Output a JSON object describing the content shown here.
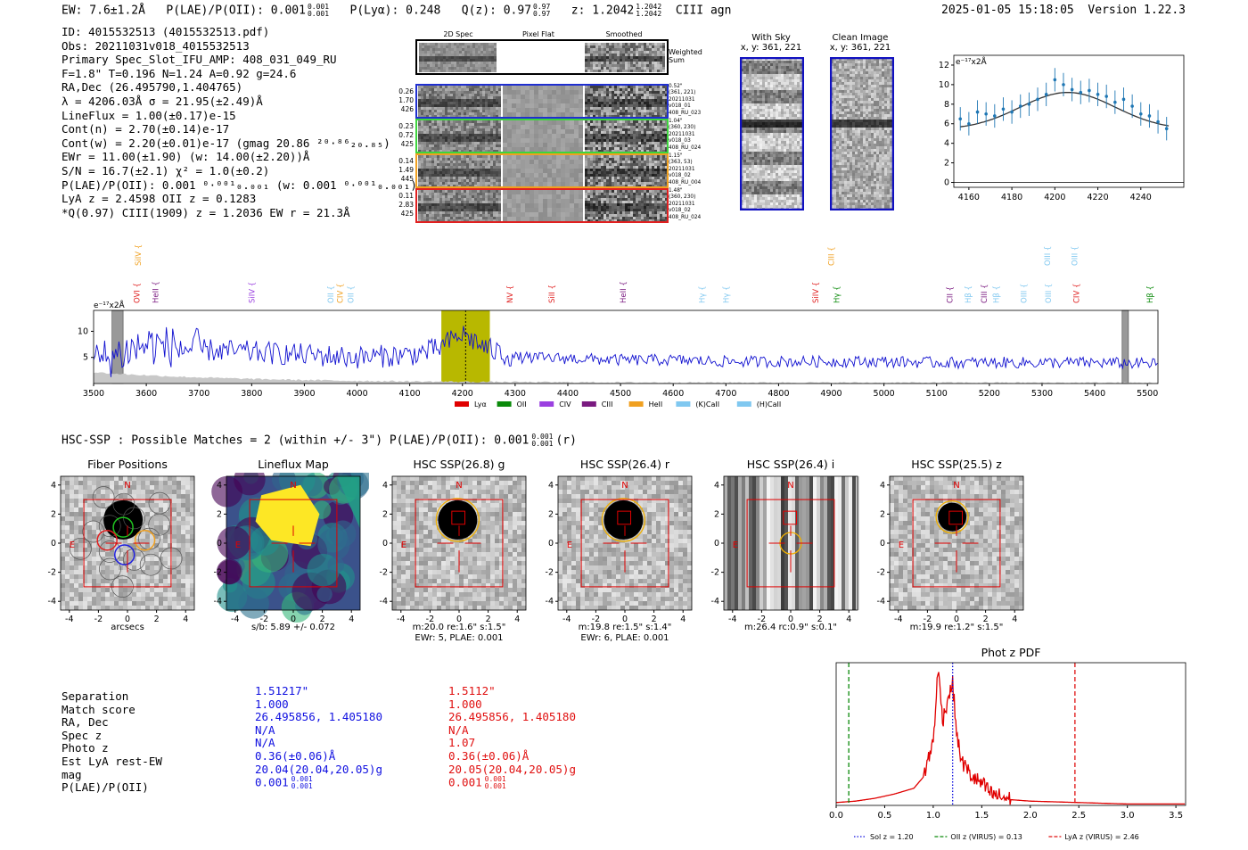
{
  "header": {
    "ew": "EW: 7.6±1.2Å",
    "plae": "P(LAE)/P(OII): 0.001",
    "plae_sup": "0.001",
    "plae_sub": "0.001",
    "plya": "P(Lyα): 0.248",
    "qz": "Q(z): 0.97",
    "qz_sup": "0.97",
    "qz_sub": "0.97",
    "z": "z: 1.2042",
    "z_sup": "1.2042",
    "z_sub": "1.2042",
    "line": "CIII  agn",
    "datetime": "2025-01-05 15:18:05",
    "version": "Version 1.22.3"
  },
  "info": {
    "lines": [
      "ID: 4015532513 (4015532513.pdf)",
      "Obs: 20211031v018_4015532513",
      "Primary Spec_Slot_IFU_AMP: 408_031_049_RU",
      "F=1.8\"  T=0.196  N=1.24  A=0.92  g=24.6",
      "RA,Dec (26.495790,1.404765)",
      "λ = 4206.03Å  σ = 21.95(±2.49)Å",
      "LineFlux = 1.00(±0.17)e-15",
      "Cont(n) = 2.70(±0.14)e-17",
      "Cont(w) = 2.20(±0.01)e-17 (gmag 20.86 ²⁰·⁸⁶₂₀.₈₅)",
      "EWr = 11.00(±1.90) (w: 14.00(±2.20))Å",
      "S/N = 16.7(±2.1)  χ² = 1.0(±0.2)",
      "P(LAE)/P(OII): 0.001 ⁰·⁰⁰¹₀.₀₀₁ (w: 0.001 ⁰·⁰⁰¹₀.₀₀₁)",
      "LyA z = 2.4598  OII z = 0.1283",
      "*Q(0.97) CIII(1909) z = 1.2036  EW r = 21.3Å"
    ]
  },
  "cutouts": {
    "col_titles": [
      "2D Spec",
      "Pixel Flat",
      "Smoothed"
    ],
    "weighted_sum": "Weighted Sum",
    "rows": [
      {
        "left": [
          "0.26",
          "1.70",
          "426"
        ],
        "right": [
          "0.52\"",
          "(361, 221)",
          "20211031",
          "v018_01",
          "408_RU_023"
        ],
        "color": "#1f2fd0"
      },
      {
        "left": [
          "0.23",
          "0.72",
          "425"
        ],
        "right": [
          "1.04\"",
          "(360, 230)",
          "20211031",
          "v018_03",
          "408_RU_024"
        ],
        "color": "#3dd43d"
      },
      {
        "left": [
          "0.14",
          "1.49",
          "445"
        ],
        "right": [
          "1.15\"",
          "(363, 53)",
          "20211031",
          "v018_02",
          "408_RU_004"
        ],
        "color": "#f0a020"
      },
      {
        "left": [
          "0.11",
          "2.83",
          "425"
        ],
        "right": [
          "1.48\"",
          "(360, 230)",
          "20211031",
          "v018_02",
          "408_RU_024"
        ],
        "color": "#e02020"
      }
    ],
    "with_sky": {
      "title": "With Sky",
      "coords": "x, y: 361, 221"
    },
    "clean": {
      "title": "Clean Image",
      "coords": "x, y: 361, 221"
    }
  },
  "fit_plot": {
    "ylabel": "e⁻¹⁷x2Å",
    "x_ticks": [
      4160,
      4180,
      4200,
      4220,
      4240
    ],
    "y_ticks": [
      0,
      2,
      4,
      6,
      8,
      10,
      12
    ],
    "xlim": [
      4153,
      4260
    ],
    "ylim": [
      -0.5,
      13
    ]
  },
  "spectrum": {
    "ylabel": "e⁻¹⁷x2Å",
    "x_ticks": [
      3500,
      3600,
      3700,
      3800,
      3900,
      4000,
      4100,
      4200,
      4300,
      4400,
      4500,
      4600,
      4700,
      4800,
      4900,
      5000,
      5100,
      5200,
      5300,
      5400,
      5500
    ],
    "y_ticks": [
      5,
      10
    ],
    "xlim": [
      3500,
      5520
    ],
    "ylim": [
      0,
      14
    ],
    "highlight": [
      4160,
      4252
    ],
    "marker": 4206,
    "lines": [
      {
        "label": "SiIV",
        "x": 3585,
        "color": "#f0a020",
        "row": 0
      },
      {
        "label": "OVI",
        "x": 3582,
        "color": "#e02020",
        "row": 1
      },
      {
        "label": "HeII",
        "x": 3618,
        "color": "#7a1a80",
        "row": 1
      },
      {
        "label": "SiIV",
        "x": 3800,
        "color": "#9b40e0",
        "row": 1
      },
      {
        "label": "OII",
        "x": 3950,
        "color": "#80c8f0",
        "row": 1
      },
      {
        "label": "CIV",
        "x": 3968,
        "color": "#f0a020",
        "row": 1
      },
      {
        "label": "OII",
        "x": 3988,
        "color": "#80c8f0",
        "row": 1
      },
      {
        "label": "NV",
        "x": 4290,
        "color": "#e02020",
        "row": 1
      },
      {
        "label": "SiII",
        "x": 4370,
        "color": "#e02020",
        "row": 1
      },
      {
        "label": "HeII",
        "x": 4505,
        "color": "#7a1a80",
        "row": 1
      },
      {
        "label": "Hγ",
        "x": 4655,
        "color": "#80c8f0",
        "row": 1
      },
      {
        "label": "Hγ",
        "x": 4700,
        "color": "#80c8f0",
        "row": 1
      },
      {
        "label": "SiIV",
        "x": 4870,
        "color": "#e02020",
        "row": 1
      },
      {
        "label": "CIII",
        "x": 4900,
        "color": "#f0a020",
        "row": 0
      },
      {
        "label": "Hγ",
        "x": 4910,
        "color": "#0a8a0a",
        "row": 1
      },
      {
        "label": "CII",
        "x": 5125,
        "color": "#7a1a80",
        "row": 1
      },
      {
        "label": "Hβ",
        "x": 5160,
        "color": "#80c8f0",
        "row": 1
      },
      {
        "label": "CIII",
        "x": 5190,
        "color": "#7a1a80",
        "row": 1
      },
      {
        "label": "Hβ",
        "x": 5213,
        "color": "#80c8f0",
        "row": 1
      },
      {
        "label": "OIII",
        "x": 5265,
        "color": "#80c8f0",
        "row": 1
      },
      {
        "label": "OIII",
        "x": 5310,
        "color": "#80c8f0",
        "row": 0
      },
      {
        "label": "OIII",
        "x": 5312,
        "color": "#80c8f0",
        "row": 1
      },
      {
        "label": "OIII",
        "x": 5362,
        "color": "#80c8f0",
        "row": 0
      },
      {
        "label": "CIV",
        "x": 5365,
        "color": "#e02020",
        "row": 1
      },
      {
        "label": "Hβ",
        "x": 5505,
        "color": "#0a8a0a",
        "row": 1
      }
    ],
    "legend": [
      {
        "label": "Lyα",
        "color": "#e00000"
      },
      {
        "label": "OII",
        "color": "#0a8a0a"
      },
      {
        "label": "CIV",
        "color": "#9b40e0"
      },
      {
        "label": "CIII",
        "color": "#7a1a80"
      },
      {
        "label": "HeII",
        "color": "#f0a020"
      },
      {
        "label": "(K)CaII",
        "color": "#80c8f0"
      },
      {
        "label": "(H)CaII",
        "color": "#80c8f0"
      }
    ]
  },
  "hsc": {
    "summary": "HSC-SSP : Possible Matches = 2 (within +/- 3\")  P(LAE)/P(OII): 0.001",
    "summary_sup": "0.001",
    "summary_sub": "0.001",
    "summary_tail": "(r)",
    "panels": [
      {
        "title": "Fiber Positions",
        "caption1": "arcsecs",
        "caption2": ""
      },
      {
        "title": "Lineflux Map",
        "caption1": "s/b: 5.89 +/- 0.072",
        "caption2": ""
      },
      {
        "title": "HSC SSP(26.8) g",
        "caption1": "m:20.0  re:1.6\"  s:1.5\"",
        "caption2": "EWr: 5, PLAE: 0.001"
      },
      {
        "title": "HSC SSP(26.4) r",
        "caption1": "m:19.8  re:1.5\"  s:1.4\"",
        "caption2": "EWr: 6, PLAE: 0.001"
      },
      {
        "title": "HSC SSP(26.4) i",
        "caption1": "m:26.4 rc:0.9\"  s:0.1\"",
        "caption2": ""
      },
      {
        "title": "HSC SSP(25.5) z",
        "caption1": "m:19.9  re:1.2\"  s:1.5\"",
        "caption2": ""
      }
    ],
    "axis_ticks": [
      -4,
      -2,
      0,
      2,
      4
    ],
    "north": "N",
    "east": "E"
  },
  "table": {
    "labels": [
      "Separation",
      "Match score",
      "RA, Dec",
      "Spec z",
      "Photo z",
      "Est LyA rest-EW",
      "mag",
      "P(LAE)/P(OII)"
    ],
    "col1": [
      "1.51217\"",
      "1.000",
      "26.495856, 1.405180",
      "N/A",
      "N/A",
      "0.36(±0.06)Å",
      "20.04(20.04,20.05)g",
      "0.001"
    ],
    "col2": [
      "1.5112\"",
      "1.000",
      "26.495856, 1.405180",
      "N/A",
      "1.07",
      "0.36(±0.06)Å",
      "20.05(20.04,20.05)g",
      "0.001"
    ],
    "plae_sup": "0.001",
    "plae_sub": "0.001",
    "col1_color": "#1010e0",
    "col2_color": "#e01010"
  },
  "chart_data": [
    {
      "type": "line",
      "title": "",
      "xlabel": "",
      "ylabel": "e⁻¹⁷x2Å",
      "xlim": [
        3500,
        5520
      ],
      "ylim": [
        0,
        14
      ],
      "series": [
        {
          "name": "",
          "x": [
            3500,
            3600,
            3700,
            3800,
            3900,
            4000,
            4100,
            4150,
            4200,
            4250,
            4300,
            4400,
            4500,
            4600,
            4700,
            4800,
            4900,
            5000,
            5100,
            5200,
            5300,
            5400,
            5500
          ],
          "values": [
            4,
            7.5,
            6.5,
            6,
            5.5,
            5,
            5.5,
            6.5,
            9.5,
            6.5,
            5,
            4.8,
            4.5,
            4.5,
            4.2,
            4.2,
            4.2,
            4.2,
            4,
            4,
            4,
            4,
            3.8
          ]
        }
      ]
    },
    {
      "type": "scatter",
      "title": "",
      "xlabel": "",
      "ylabel": "e⁻¹⁷x2Å",
      "xlim": [
        4153,
        4260
      ],
      "ylim": [
        -0.5,
        13
      ],
      "series": [
        {
          "name": "",
          "x": [
            4156,
            4160,
            4164,
            4168,
            4172,
            4176,
            4180,
            4184,
            4188,
            4192,
            4196,
            4200,
            4204,
            4208,
            4212,
            4216,
            4220,
            4224,
            4228,
            4232,
            4236,
            4240,
            4244,
            4248,
            4252
          ],
          "values": [
            6.5,
            6.0,
            7.2,
            7.0,
            6.8,
            7.5,
            7.2,
            7.8,
            8.0,
            8.5,
            9.0,
            10.5,
            10.0,
            9.5,
            9.2,
            9.4,
            9.0,
            8.8,
            8.2,
            8.5,
            7.8,
            7.0,
            6.8,
            6.2,
            5.5
          ]
        }
      ]
    },
    {
      "type": "line",
      "title": "Phot z PDF",
      "xlabel": "",
      "ylabel": "",
      "xlim": [
        0,
        3.6
      ],
      "ylim": [
        0,
        1
      ],
      "series": [
        {
          "name": "",
          "x": [
            0.0,
            0.2,
            0.4,
            0.6,
            0.8,
            0.9,
            1.0,
            1.05,
            1.1,
            1.15,
            1.2,
            1.25,
            1.3,
            1.4,
            1.5,
            1.6,
            1.8,
            2.0,
            2.5,
            3.0,
            3.6
          ],
          "values": [
            0.02,
            0.03,
            0.05,
            0.08,
            0.12,
            0.2,
            0.45,
            0.95,
            0.6,
            0.75,
            0.85,
            0.45,
            0.3,
            0.2,
            0.15,
            0.08,
            0.04,
            0.03,
            0.02,
            0.01,
            0.01
          ]
        }
      ],
      "vlines": [
        {
          "name": "Sol z = 1.20",
          "x": 1.2,
          "color": "#1010e0",
          "style": "dotted"
        },
        {
          "name": "OII z (VIRUS) = 0.13",
          "x": 0.13,
          "color": "#0a8a0a",
          "style": "dashed"
        },
        {
          "name": "LyA z (VIRUS) = 2.46",
          "x": 2.46,
          "color": "#e01010",
          "style": "dashed"
        }
      ],
      "x_ticks": [
        0.0,
        0.5,
        1.0,
        1.5,
        2.0,
        2.5,
        3.0,
        3.5
      ]
    }
  ]
}
